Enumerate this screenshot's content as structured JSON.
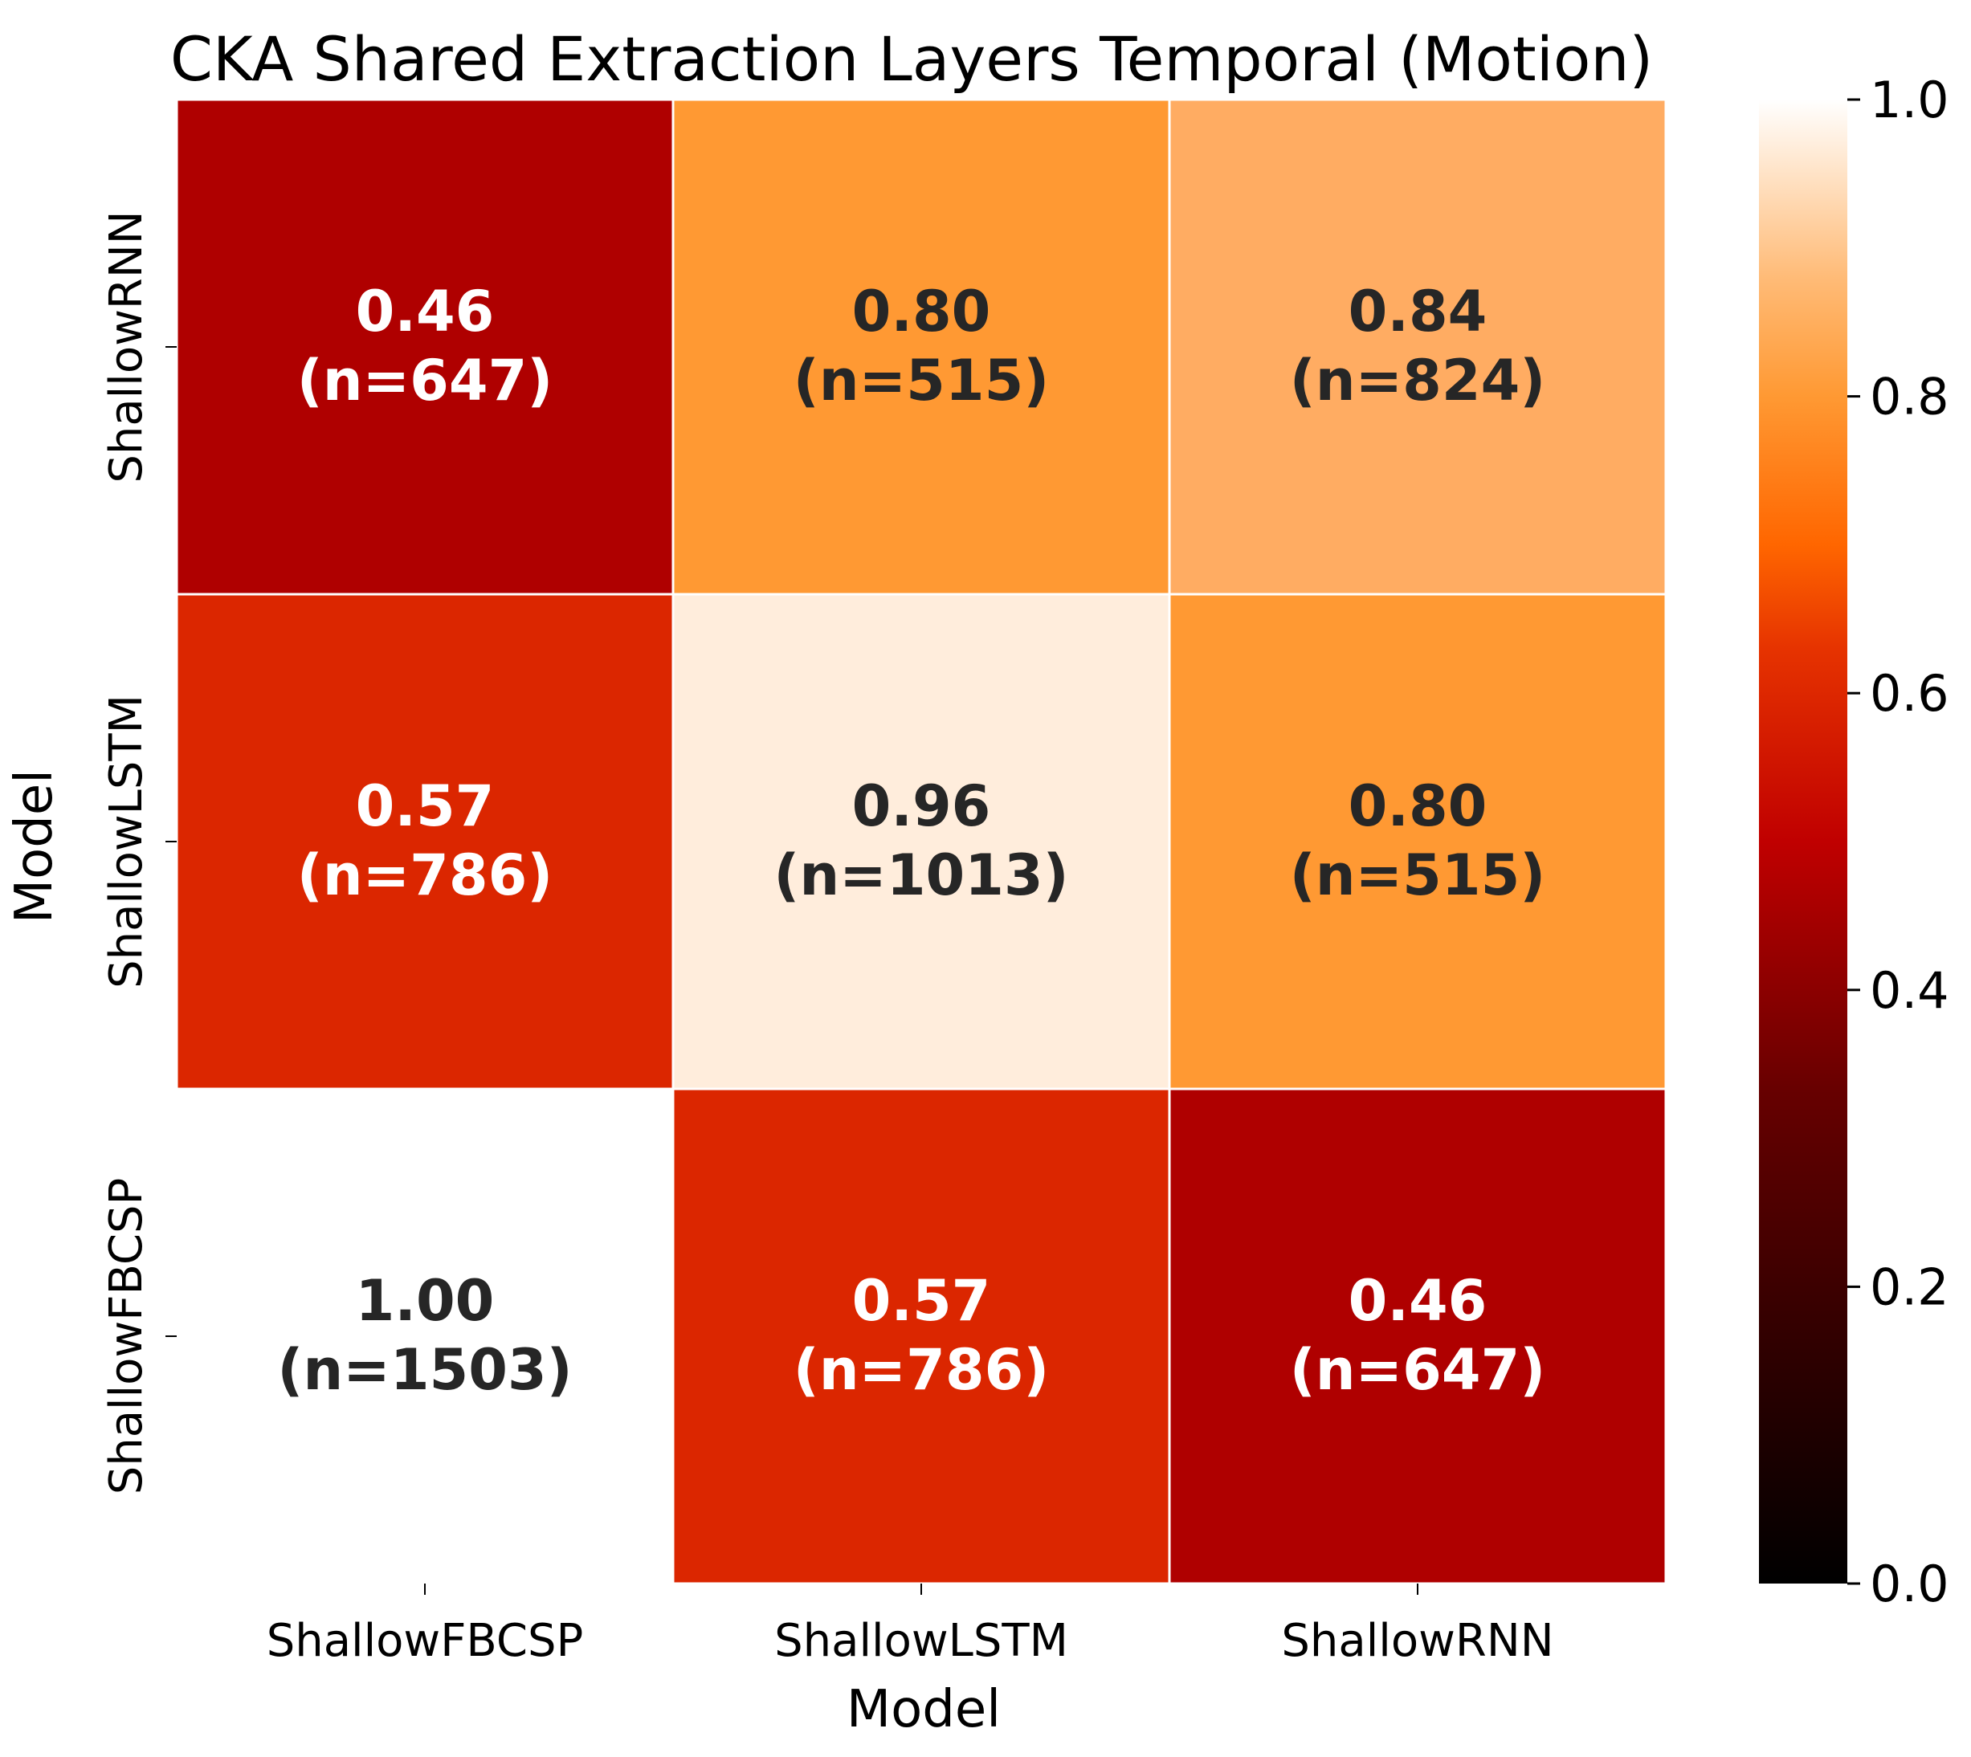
{
  "chart_data": {
    "type": "heatmap",
    "title": "CKA Shared Extraction Layers Temporal (Motion)",
    "xlabel": "Model",
    "ylabel": "Model",
    "x_categories": [
      "ShallowFBCSP",
      "ShallowLSTM",
      "ShallowRNN"
    ],
    "y_categories": [
      "ShallowRNN",
      "ShallowLSTM",
      "ShallowFBCSP"
    ],
    "values": [
      [
        0.46,
        0.8,
        0.84
      ],
      [
        0.57,
        0.96,
        0.8
      ],
      [
        1.0,
        0.57,
        0.46
      ]
    ],
    "counts": [
      [
        647,
        515,
        824
      ],
      [
        786,
        1013,
        515
      ],
      [
        1503,
        786,
        647
      ]
    ],
    "masked": [
      [
        false,
        false,
        false
      ],
      [
        false,
        false,
        false
      ],
      [
        true,
        false,
        false
      ]
    ],
    "colorbar": {
      "colormap": "gist_heat",
      "range": [
        0.0,
        1.0
      ],
      "ticks": [
        0.0,
        0.2,
        0.4,
        0.6,
        0.8,
        1.0
      ],
      "tick_labels": [
        "0.0",
        "0.2",
        "0.4",
        "0.6",
        "0.8",
        "1.0"
      ]
    },
    "cell_labels": [
      [
        "0.46",
        "(n=647)",
        "0.80",
        "(n=515)",
        "0.84",
        "(n=824)"
      ],
      [
        "0.57",
        "(n=786)",
        "0.96",
        "(n=1013)",
        "0.80",
        "(n=515)"
      ],
      [
        "1.00",
        "(n=1503)",
        "0.57",
        "(n=786)",
        "0.46",
        "(n=647)"
      ]
    ],
    "grid": false
  }
}
